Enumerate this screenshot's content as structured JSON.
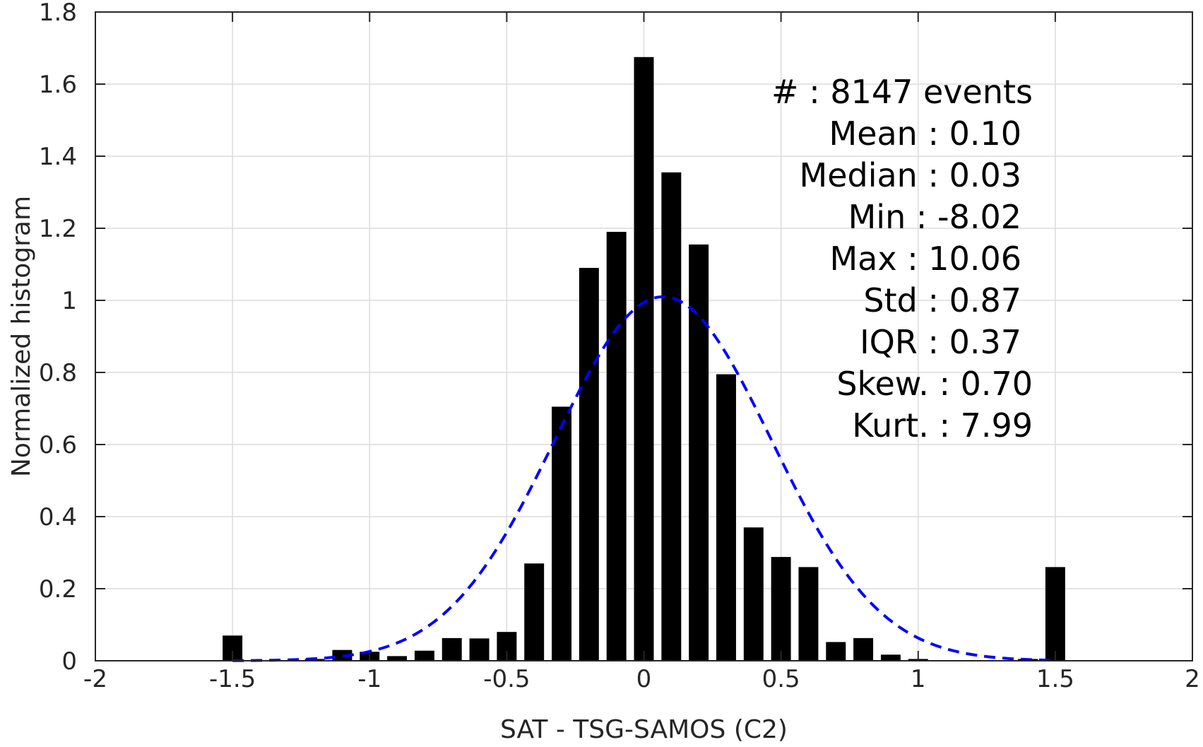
{
  "chart_data": {
    "type": "bar",
    "xlabel": "SAT - TSG-SAMOS (C2)",
    "ylabel": "Normalized histogram",
    "xlim": [
      -2,
      2
    ],
    "ylim": [
      0,
      1.8
    ],
    "xticks": [
      "-2",
      "-1.5",
      "-1",
      "-0.5",
      "0",
      "0.5",
      "1",
      "1.5",
      "2"
    ],
    "yticks": [
      "0",
      "0.2",
      "0.4",
      "0.6",
      "0.8",
      "1",
      "1.2",
      "1.4",
      "1.6",
      "1.8"
    ],
    "grid": true,
    "bar_color": "#000000",
    "bins": [
      {
        "x": -1.5,
        "y": 0.07
      },
      {
        "x": -1.2,
        "y": 0.005
      },
      {
        "x": -1.1,
        "y": 0.03
      },
      {
        "x": -1.0,
        "y": 0.025
      },
      {
        "x": -0.9,
        "y": 0.013
      },
      {
        "x": -0.8,
        "y": 0.028
      },
      {
        "x": -0.7,
        "y": 0.063
      },
      {
        "x": -0.6,
        "y": 0.062
      },
      {
        "x": -0.5,
        "y": 0.08
      },
      {
        "x": -0.4,
        "y": 0.27
      },
      {
        "x": -0.3,
        "y": 0.705
      },
      {
        "x": -0.2,
        "y": 1.09
      },
      {
        "x": -0.1,
        "y": 1.19
      },
      {
        "x": 0.0,
        "y": 1.675
      },
      {
        "x": 0.1,
        "y": 1.355
      },
      {
        "x": 0.2,
        "y": 1.155
      },
      {
        "x": 0.3,
        "y": 0.795
      },
      {
        "x": 0.4,
        "y": 0.37
      },
      {
        "x": 0.5,
        "y": 0.288
      },
      {
        "x": 0.6,
        "y": 0.26
      },
      {
        "x": 0.7,
        "y": 0.052
      },
      {
        "x": 0.8,
        "y": 0.063
      },
      {
        "x": 0.9,
        "y": 0.017
      },
      {
        "x": 1.0,
        "y": 0.005
      },
      {
        "x": 1.1,
        "y": 0.002
      },
      {
        "x": 1.4,
        "y": 0.005
      },
      {
        "x": 1.5,
        "y": 0.26
      }
    ],
    "fit_curve": {
      "style": "dashed",
      "color": "#0000ff",
      "mean": 0.07,
      "std": 0.395,
      "x_range": [
        -1.5,
        1.5
      ]
    },
    "stats_lines": [
      "#  : 8147 events",
      "Mean : 0.10",
      "Median : 0.03",
      "Min : -8.02",
      "Max : 10.06",
      "Std : 0.87",
      "IQR : 0.37",
      "Skew. : 0.70",
      "Kurt. : 7.99"
    ]
  }
}
